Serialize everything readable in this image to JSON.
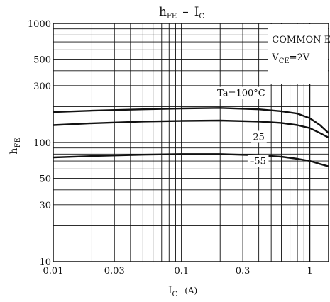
{
  "chart_data": {
    "type": "line",
    "title": {
      "main": "h",
      "main_sub": "FE",
      "dash": "–",
      "right": "I",
      "right_sub": "C"
    },
    "xlabel": {
      "main": "I",
      "sub": "C",
      "unit": "(A)"
    },
    "ylabel": {
      "main": "h",
      "sub": "FE"
    },
    "x_scale": "log",
    "y_scale": "log",
    "xlim": [
      0.01,
      1.4
    ],
    "ylim": [
      10,
      1000
    ],
    "grid": true,
    "x_ticks": [
      0.01,
      0.03,
      0.1,
      0.3,
      1
    ],
    "x_tick_labels": [
      "0.01",
      "0.03",
      "0.1",
      "0.3",
      "1"
    ],
    "y_ticks": [
      10,
      30,
      50,
      100,
      300,
      500,
      1000
    ],
    "y_tick_labels": [
      "10",
      "30",
      "50",
      "100",
      "300",
      "500",
      "1000"
    ],
    "conditions": {
      "line1": "COMMON EMITTER",
      "line2_main": "V",
      "line2_sub": "CE",
      "line2_rest": "=2V"
    },
    "series": [
      {
        "name": "Ta=100°C",
        "x": [
          0.01,
          0.02,
          0.05,
          0.1,
          0.2,
          0.4,
          0.6,
          0.8,
          1.0,
          1.2,
          1.4
        ],
        "y": [
          180,
          185,
          190,
          193,
          195,
          190,
          183,
          175,
          160,
          140,
          120
        ]
      },
      {
        "name": "25",
        "x": [
          0.01,
          0.02,
          0.05,
          0.1,
          0.2,
          0.4,
          0.6,
          0.8,
          1.0,
          1.2,
          1.4
        ],
        "y": [
          140,
          145,
          150,
          152,
          153,
          150,
          146,
          140,
          132,
          120,
          110
        ]
      },
      {
        "name": "–55",
        "x": [
          0.01,
          0.02,
          0.05,
          0.1,
          0.2,
          0.4,
          0.6,
          0.8,
          1.0,
          1.2,
          1.4
        ],
        "y": [
          75,
          77,
          79,
          80,
          80,
          78,
          76,
          73,
          70,
          66,
          63
        ]
      }
    ]
  }
}
